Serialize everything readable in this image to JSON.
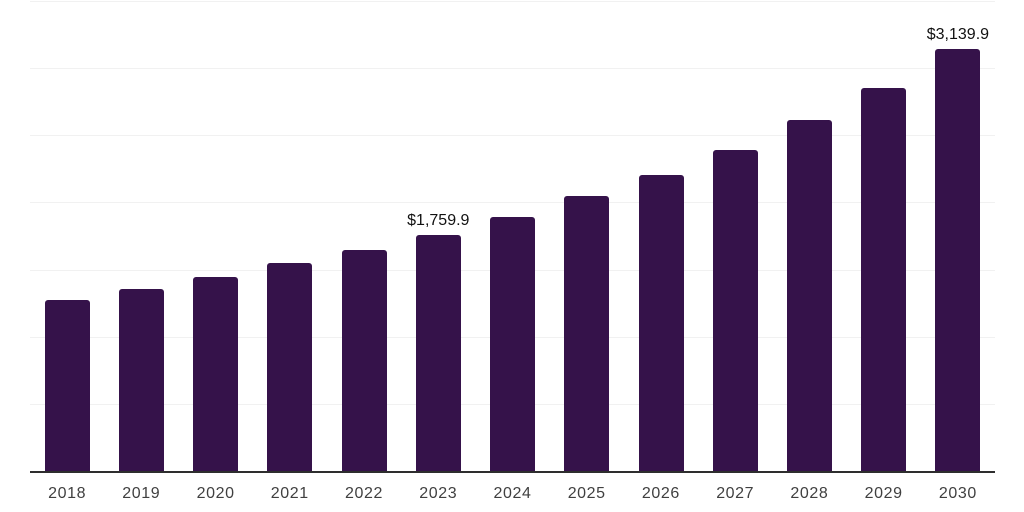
{
  "chart_data": {
    "type": "bar",
    "title": "",
    "xlabel": "",
    "ylabel": "",
    "categories": [
      "2018",
      "2019",
      "2020",
      "2021",
      "2022",
      "2023",
      "2024",
      "2025",
      "2026",
      "2027",
      "2028",
      "2029",
      "2030"
    ],
    "values": [
      1277,
      1357,
      1446,
      1548,
      1644,
      1759.9,
      1893,
      2046,
      2207,
      2393,
      2611,
      2852,
      3139.9
    ],
    "data_labels": [
      "",
      "",
      "",
      "",
      "",
      "$1,759.9",
      "",
      "",
      "",
      "",
      "",
      "",
      "$3,139.9"
    ],
    "ylim": [
      0,
      3500
    ],
    "gridline_step": 500,
    "grid": "horizontal-only",
    "legend_position": "none",
    "y_axis_labels_visible": false,
    "colors": {
      "bar": "#35124a",
      "axis_line": "#2e2e2e",
      "gridline": "#f1f1f1",
      "tick_label": "#404040",
      "data_label": "#111111",
      "background": "#ffffff"
    }
  }
}
